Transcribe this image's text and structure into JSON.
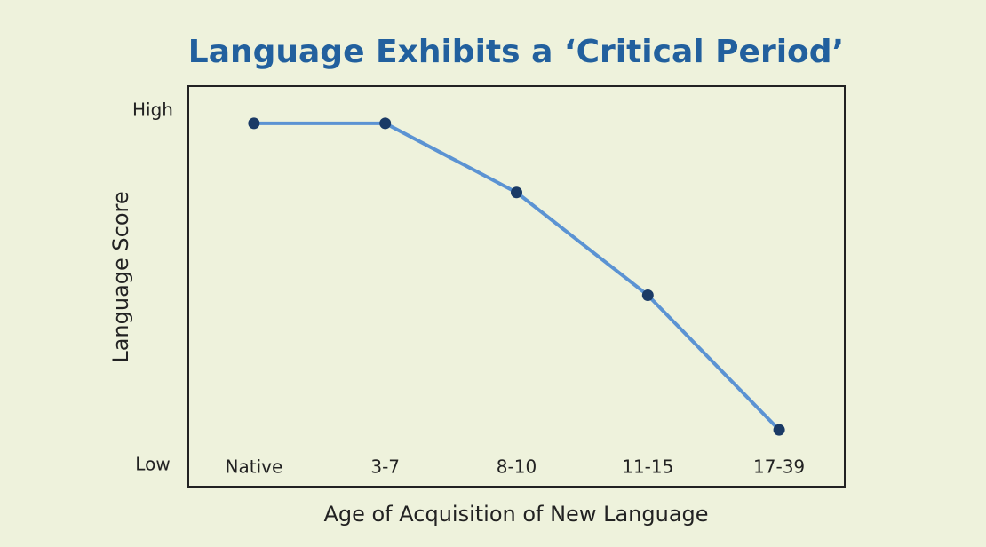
{
  "chart_data": {
    "type": "line",
    "title": "Language Exhibits a ‘Critical Period’",
    "x_label": "Age of Acquisition of New Language",
    "y_label": "Language Score",
    "categories": [
      "Native",
      "3-7",
      "8-10",
      "11-15",
      "17-39"
    ],
    "values": [
      96.5,
      96.5,
      77,
      48,
      10
    ],
    "line_color": "#5b93d3",
    "marker_color": "#1a3a66",
    "ylim": [
      -6,
      107
    ],
    "yticks": [
      {
        "value": 0,
        "label": "Low"
      },
      {
        "value": 100,
        "label": "High"
      }
    ],
    "grid": false
  }
}
